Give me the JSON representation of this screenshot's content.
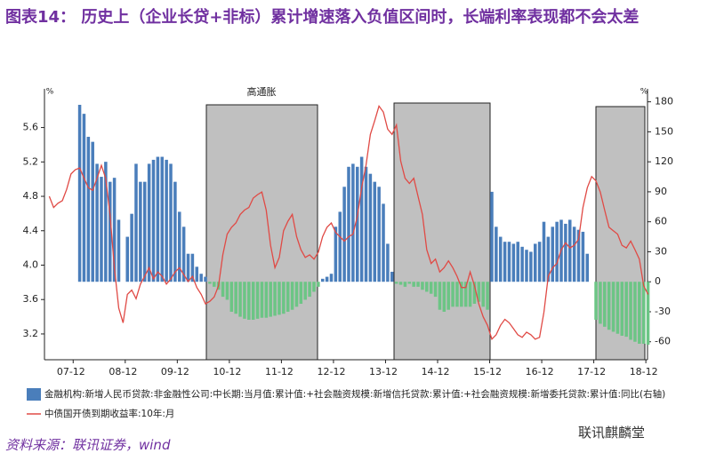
{
  "chart_data": {
    "type": "bar_line",
    "title": "图表14： 历史上（企业长贷+非标）累计增速落入负值区间时，长端利率表现都不会太差",
    "source": "资料来源：联讯证券，wind",
    "watermark": "联讯麒麟堂",
    "annotation": "高通胀",
    "y_unit": "%",
    "y2_unit": "%",
    "categories": [
      null,
      null,
      null,
      null,
      null,
      "07-12",
      null,
      null,
      null,
      null,
      null,
      null,
      null,
      null,
      null,
      null,
      null,
      "08-12",
      null,
      null,
      null,
      null,
      null,
      null,
      null,
      null,
      null,
      null,
      null,
      "09-12",
      null,
      null,
      null,
      null,
      null,
      null,
      null,
      null,
      null,
      null,
      null,
      "10-12",
      null,
      null,
      null,
      null,
      null,
      null,
      null,
      null,
      null,
      null,
      null,
      "11-12",
      null,
      null,
      null,
      null,
      null,
      null,
      null,
      null,
      null,
      null,
      null,
      "12-12",
      null,
      null,
      null,
      null,
      null,
      null,
      null,
      null,
      null,
      null,
      null,
      "13-12",
      null,
      null,
      null,
      null,
      null,
      null,
      null,
      null,
      null,
      null,
      null,
      "14-12",
      null,
      null,
      null,
      null,
      null,
      null,
      null,
      null,
      null,
      null,
      null,
      "15-12",
      null,
      null,
      null,
      null,
      null,
      null,
      null,
      null,
      null,
      null,
      null,
      "16-12",
      null,
      null,
      null,
      null,
      null,
      null,
      null,
      null,
      null,
      null,
      null,
      "17-12",
      null,
      null,
      null,
      null,
      null,
      null,
      null,
      null,
      null,
      null,
      null,
      "18-12",
      null
    ],
    "series": [
      {
        "name": "金融机构:新增人民币贷款:非金融性公司:中长期:当月值:累计值:+社会融资规模:新增信托贷款:累计值:+社会融资规模:新增委托贷款:累计值:同比(右轴)",
        "kind": "bar",
        "axis": "y2",
        "color": "#4a7ebb",
        "negative_color": "#6cc585",
        "values": [
          null,
          null,
          null,
          null,
          null,
          null,
          null,
          177,
          168,
          145,
          140,
          118,
          105,
          120,
          100,
          104,
          62,
          null,
          45,
          68,
          118,
          100,
          100,
          118,
          122,
          125,
          125,
          122,
          118,
          100,
          70,
          55,
          28,
          28,
          15,
          8,
          5,
          -2,
          -5,
          -8,
          -15,
          -18,
          -30,
          -32,
          -35,
          -37,
          -38,
          -38,
          -37,
          -36,
          -36,
          -35,
          -34,
          -33,
          -32,
          -30,
          -28,
          -25,
          -22,
          -18,
          -15,
          -10,
          -5,
          3,
          5,
          8,
          55,
          70,
          95,
          115,
          118,
          115,
          125,
          115,
          108,
          100,
          95,
          78,
          38,
          10,
          -2,
          -3,
          -5,
          -2,
          -5,
          -5,
          -8,
          -10,
          -12,
          -15,
          -28,
          -30,
          -28,
          -25,
          -25,
          -25,
          -25,
          -25,
          -22,
          -20,
          -25,
          -28,
          90,
          55,
          45,
          40,
          40,
          38,
          40,
          35,
          32,
          30,
          38,
          40,
          60,
          45,
          55,
          60,
          62,
          58,
          62,
          55,
          52,
          50,
          28,
          null,
          -38,
          -42,
          -45,
          -48,
          -50,
          -52,
          -54,
          -55,
          -58,
          -60,
          -62,
          -62,
          -63
        ]
      },
      {
        "name": "中债国开债到期收益率:10年:月",
        "kind": "line",
        "axis": "y",
        "color": "#e04a45",
        "values": [
          4.8,
          4.67,
          4.72,
          4.75,
          4.88,
          5.06,
          5.11,
          5.13,
          5.01,
          4.9,
          4.87,
          5.01,
          5.16,
          5.01,
          4.59,
          3.97,
          3.5,
          3.33,
          3.66,
          3.71,
          3.61,
          3.78,
          3.87,
          3.97,
          3.84,
          3.92,
          3.87,
          3.78,
          3.84,
          3.92,
          3.97,
          3.89,
          3.81,
          3.87,
          3.74,
          3.66,
          3.55,
          3.58,
          3.63,
          3.76,
          4.12,
          4.36,
          4.44,
          4.49,
          4.59,
          4.64,
          4.67,
          4.78,
          4.82,
          4.85,
          4.64,
          4.23,
          3.97,
          4.09,
          4.4,
          4.51,
          4.59,
          4.33,
          4.18,
          4.09,
          4.12,
          4.07,
          4.15,
          4.33,
          4.44,
          4.49,
          4.38,
          4.33,
          4.28,
          4.33,
          4.36,
          4.57,
          4.9,
          5.16,
          5.52,
          5.68,
          5.85,
          5.78,
          5.58,
          5.52,
          5.63,
          5.21,
          5.01,
          4.95,
          5.01,
          4.8,
          4.59,
          4.18,
          4.02,
          4.07,
          3.92,
          3.97,
          4.05,
          3.97,
          3.87,
          3.74,
          3.74,
          3.92,
          3.76,
          3.55,
          3.4,
          3.3,
          3.14,
          3.19,
          3.3,
          3.37,
          3.33,
          3.26,
          3.19,
          3.16,
          3.22,
          3.19,
          3.14,
          3.16,
          3.45,
          3.87,
          3.97,
          4.02,
          4.18,
          4.26,
          4.2,
          4.23,
          4.3,
          4.67,
          4.9,
          5.03,
          4.98,
          4.85,
          4.64,
          4.44,
          4.4,
          4.36,
          4.23,
          4.2,
          4.28,
          4.18,
          4.07,
          3.76,
          3.66
        ]
      }
    ],
    "ylim": [
      2.9,
      6.05
    ],
    "yticks": [
      3.2,
      3.6,
      {
        "value": 4,
        "label": "4.0"
      },
      4.4,
      4.8,
      5.2,
      5.6
    ],
    "y2lim": [
      -78,
      193
    ],
    "y2ticks": [
      -60,
      -30,
      0,
      30,
      60,
      90,
      120,
      150,
      180
    ],
    "legend": "bottom",
    "grid": false
  }
}
